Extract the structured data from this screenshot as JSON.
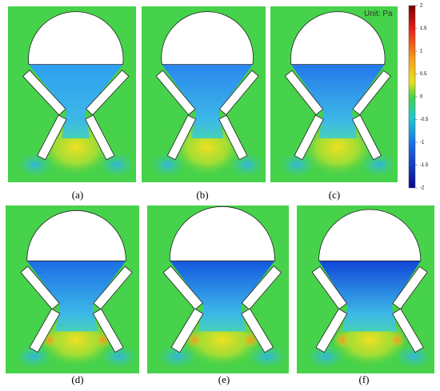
{
  "panels": [
    {
      "label": "(a)"
    },
    {
      "label": "(b)"
    },
    {
      "label": "(c)"
    },
    {
      "label": "(d)"
    },
    {
      "label": "(e)"
    },
    {
      "label": "(f)"
    }
  ],
  "colorbar": {
    "unit": "Unit: Pa",
    "range": [
      -2,
      2
    ],
    "ticks": [
      2,
      1.5,
      1,
      0.5,
      0,
      -0.5,
      -1,
      -1.5,
      -2
    ]
  }
}
